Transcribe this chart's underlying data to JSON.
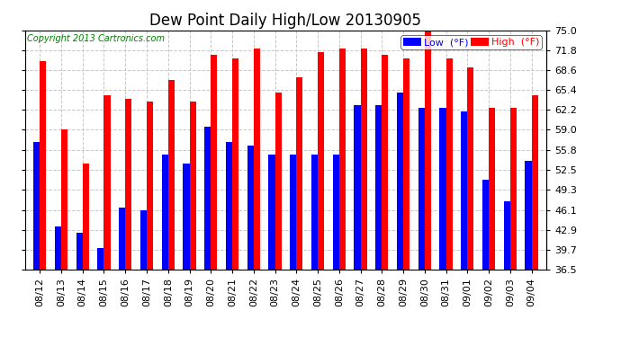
{
  "title": "Dew Point Daily High/Low 20130905",
  "copyright": "Copyright 2013 Cartronics.com",
  "legend_low": "Low  (°F)",
  "legend_high": "High  (°F)",
  "dates": [
    "08/12",
    "08/13",
    "08/14",
    "08/15",
    "08/16",
    "08/17",
    "08/18",
    "08/19",
    "08/20",
    "08/21",
    "08/22",
    "08/23",
    "08/24",
    "08/25",
    "08/26",
    "08/27",
    "08/28",
    "08/29",
    "08/30",
    "08/31",
    "09/01",
    "09/02",
    "09/03",
    "09/04"
  ],
  "high": [
    70.0,
    59.0,
    53.5,
    64.5,
    64.0,
    63.5,
    67.0,
    63.5,
    71.0,
    70.5,
    72.0,
    65.0,
    67.5,
    71.5,
    72.0,
    72.0,
    71.0,
    70.5,
    75.5,
    70.5,
    69.0,
    62.5,
    62.5,
    64.5
  ],
  "low": [
    57.0,
    43.5,
    42.5,
    40.0,
    46.5,
    46.0,
    55.0,
    53.5,
    59.5,
    57.0,
    56.5,
    55.0,
    55.0,
    55.0,
    55.0,
    63.0,
    63.0,
    65.0,
    62.5,
    62.5,
    62.0,
    51.0,
    47.5,
    54.0
  ],
  "ylim": [
    36.5,
    75.0
  ],
  "yticks": [
    36.5,
    39.7,
    42.9,
    46.1,
    49.3,
    52.5,
    55.8,
    59.0,
    62.2,
    65.4,
    68.6,
    71.8,
    75.0
  ],
  "ytick_labels": [
    "36.5",
    "39.7",
    "42.9",
    "46.1",
    "49.3",
    "52.5",
    "55.8",
    "59.0",
    "62.2",
    "65.4",
    "68.6",
    "71.8",
    "75.0"
  ],
  "bar_width": 0.3,
  "high_color": "#ff0000",
  "low_color": "#0000ff",
  "background_color": "#ffffff",
  "grid_color": "#c8c8c8",
  "title_fontsize": 12,
  "tick_fontsize": 8,
  "legend_fontsize": 8,
  "copyright_fontsize": 7,
  "copyright_color": "#008000"
}
